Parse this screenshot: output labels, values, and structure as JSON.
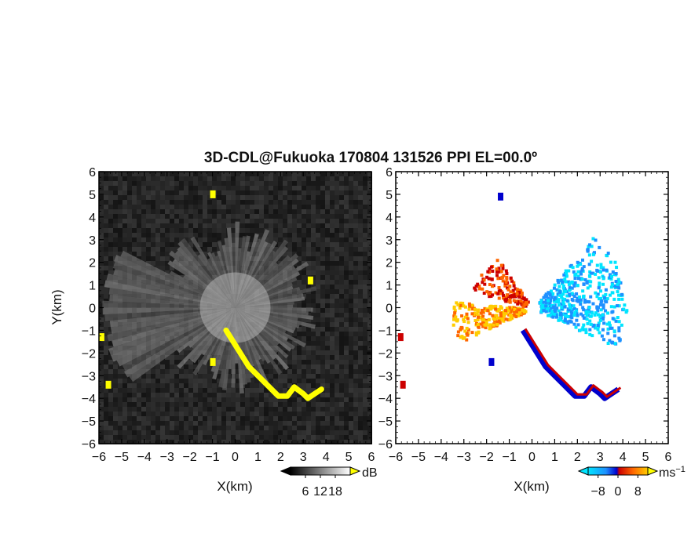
{
  "chart_data": [
    {
      "type": "heatmap",
      "panel": "reflectivity",
      "title": "3D-CDL@Fukuoka 170804 131526 PPI EL=00.0º",
      "xlabel": "X(km)",
      "ylabel": "Y(km)",
      "xlim": [
        -6,
        6
      ],
      "ylim": [
        -6,
        6
      ],
      "xticks": [
        "−6",
        "−5",
        "−4",
        "−3",
        "−2",
        "−1",
        "0",
        "1",
        "2",
        "3",
        "4",
        "5",
        "6"
      ],
      "yticks": [
        "6",
        "5",
        "4",
        "3",
        "2",
        "1",
        "0",
        "−1",
        "−2",
        "−3",
        "−4",
        "−5",
        "−6"
      ],
      "colorbar": {
        "unit": "dB",
        "ticks": [
          6,
          12,
          18
        ],
        "range": [
          0,
          24
        ],
        "colors": [
          "#000000",
          "#ffffff"
        ],
        "over_color": "#ffff00"
      },
      "background_color": "#1a1a1a",
      "highlight_color": "#ffff00",
      "highlight_band": [
        [
          -0.4,
          -1.0
        ],
        [
          0.1,
          -1.8
        ],
        [
          0.6,
          -2.6
        ],
        [
          1.0,
          -3.0
        ],
        [
          1.4,
          -3.4
        ],
        [
          1.7,
          -3.7
        ],
        [
          1.9,
          -3.9
        ],
        [
          2.3,
          -3.9
        ],
        [
          2.6,
          -3.5
        ],
        [
          3.0,
          -3.8
        ],
        [
          3.2,
          -4.0
        ],
        [
          3.5,
          -3.8
        ],
        [
          3.8,
          -3.6
        ]
      ]
    },
    {
      "type": "heatmap",
      "panel": "doppler_velocity",
      "xlabel": "X(km)",
      "xlim": [
        -6,
        6
      ],
      "ylim": [
        -6,
        6
      ],
      "xticks": [
        "−6",
        "−5",
        "−4",
        "−3",
        "−2",
        "−1",
        "0",
        "1",
        "2",
        "3",
        "4",
        "5",
        "6"
      ],
      "yticks": [
        "6",
        "5",
        "4",
        "3",
        "2",
        "1",
        "0",
        "−1",
        "−2",
        "−3",
        "−4",
        "−5",
        "−6"
      ],
      "colorbar": {
        "unit": "ms",
        "unit_sup": "−1",
        "ticks": [
          -8,
          0,
          8
        ],
        "range": [
          -12,
          12
        ],
        "colors": [
          "#00e5ff",
          "#1e90ff",
          "#0000cd",
          "#cc0000",
          "#ff6600",
          "#ffcc00"
        ]
      },
      "positive_color": "#ffb000",
      "negative_color": "#00e0f0"
    }
  ]
}
